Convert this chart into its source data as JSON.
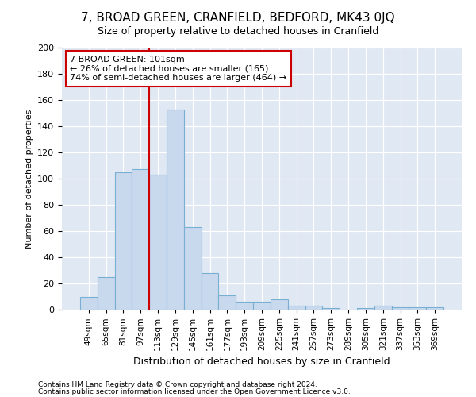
{
  "title": "7, BROAD GREEN, CRANFIELD, BEDFORD, MK43 0JQ",
  "subtitle": "Size of property relative to detached houses in Cranfield",
  "xlabel": "Distribution of detached houses by size in Cranfield",
  "ylabel": "Number of detached properties",
  "categories": [
    "49sqm",
    "65sqm",
    "81sqm",
    "97sqm",
    "113sqm",
    "129sqm",
    "145sqm",
    "161sqm",
    "177sqm",
    "193sqm",
    "209sqm",
    "225sqm",
    "241sqm",
    "257sqm",
    "273sqm",
    "289sqm",
    "305sqm",
    "321sqm",
    "337sqm",
    "353sqm",
    "369sqm"
  ],
  "values": [
    10,
    25,
    105,
    107,
    103,
    153,
    63,
    28,
    11,
    6,
    6,
    8,
    3,
    3,
    1,
    0,
    1,
    3,
    2,
    2,
    2
  ],
  "bar_color": "#c8d9ee",
  "bar_edge_color": "#7aafd4",
  "vline_index": 3.5,
  "vline_color": "#cc0000",
  "annotation_line1": "7 BROAD GREEN: 101sqm",
  "annotation_line2": "← 26% of detached houses are smaller (165)",
  "annotation_line3": "74% of semi-detached houses are larger (464) →",
  "annotation_box_facecolor": "#ffffff",
  "annotation_box_edgecolor": "#cc0000",
  "background_color": "#dfe8f3",
  "figure_facecolor": "#ffffff",
  "footer_line1": "Contains HM Land Registry data © Crown copyright and database right 2024.",
  "footer_line2": "Contains public sector information licensed under the Open Government Licence v3.0.",
  "ylim": [
    0,
    200
  ],
  "yticks": [
    0,
    20,
    40,
    60,
    80,
    100,
    120,
    140,
    160,
    180,
    200
  ],
  "title_fontsize": 11,
  "subtitle_fontsize": 9,
  "ylabel_fontsize": 8,
  "xlabel_fontsize": 9,
  "tick_fontsize": 8,
  "xtick_fontsize": 7.5,
  "footer_fontsize": 6.5,
  "annotation_fontsize": 8
}
